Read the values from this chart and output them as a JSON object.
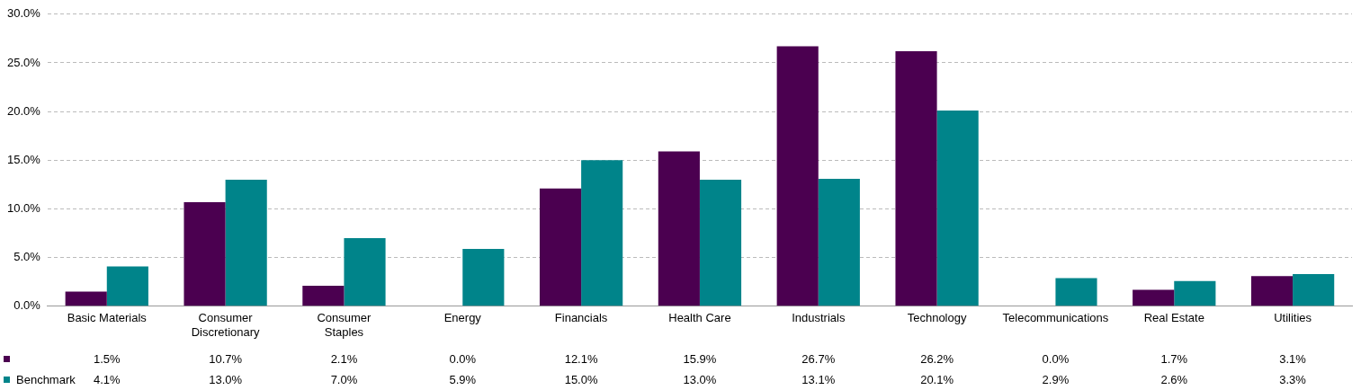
{
  "chart_data": {
    "type": "bar",
    "categories": [
      "Basic Materials",
      "Consumer Discretionary",
      "Consumer Staples",
      "Energy",
      "Financials",
      "Health Care",
      "Industrials",
      "Technology",
      "Telecommunications",
      "Real Estate",
      "Utilities"
    ],
    "series": [
      {
        "color": "#4b0050",
        "values": [
          1.5,
          10.7,
          2.1,
          0.0,
          12.1,
          15.9,
          26.7,
          26.2,
          0.0,
          1.7,
          3.1
        ],
        "value_labels": [
          "1.5%",
          "10.7%",
          "2.1%",
          "0.0%",
          "12.1%",
          "15.9%",
          "26.7%",
          "26.2%",
          "0.0%",
          "1.7%",
          "3.1%"
        ]
      },
      {
        "name": "Benchmark",
        "color": "#00848a",
        "values": [
          4.1,
          13.0,
          7.0,
          5.9,
          15.0,
          13.0,
          13.1,
          20.1,
          2.9,
          2.6,
          3.3
        ],
        "value_labels": [
          "4.1%",
          "13.0%",
          "7.0%",
          "5.9%",
          "15.0%",
          "13.0%",
          "13.1%",
          "20.1%",
          "2.9%",
          "2.6%",
          "3.3%"
        ]
      }
    ],
    "ylim": [
      0,
      30
    ],
    "yticks": [
      {
        "value": 0,
        "label": "0.0%"
      },
      {
        "value": 5,
        "label": "5.0%"
      },
      {
        "value": 10,
        "label": "10.0%"
      },
      {
        "value": 15,
        "label": "15.0%"
      },
      {
        "value": 20,
        "label": "20.0%"
      },
      {
        "value": 25,
        "label": "25.0%"
      },
      {
        "value": 30,
        "label": "30.0%"
      }
    ],
    "grid": "y",
    "legend": "bottom left"
  }
}
